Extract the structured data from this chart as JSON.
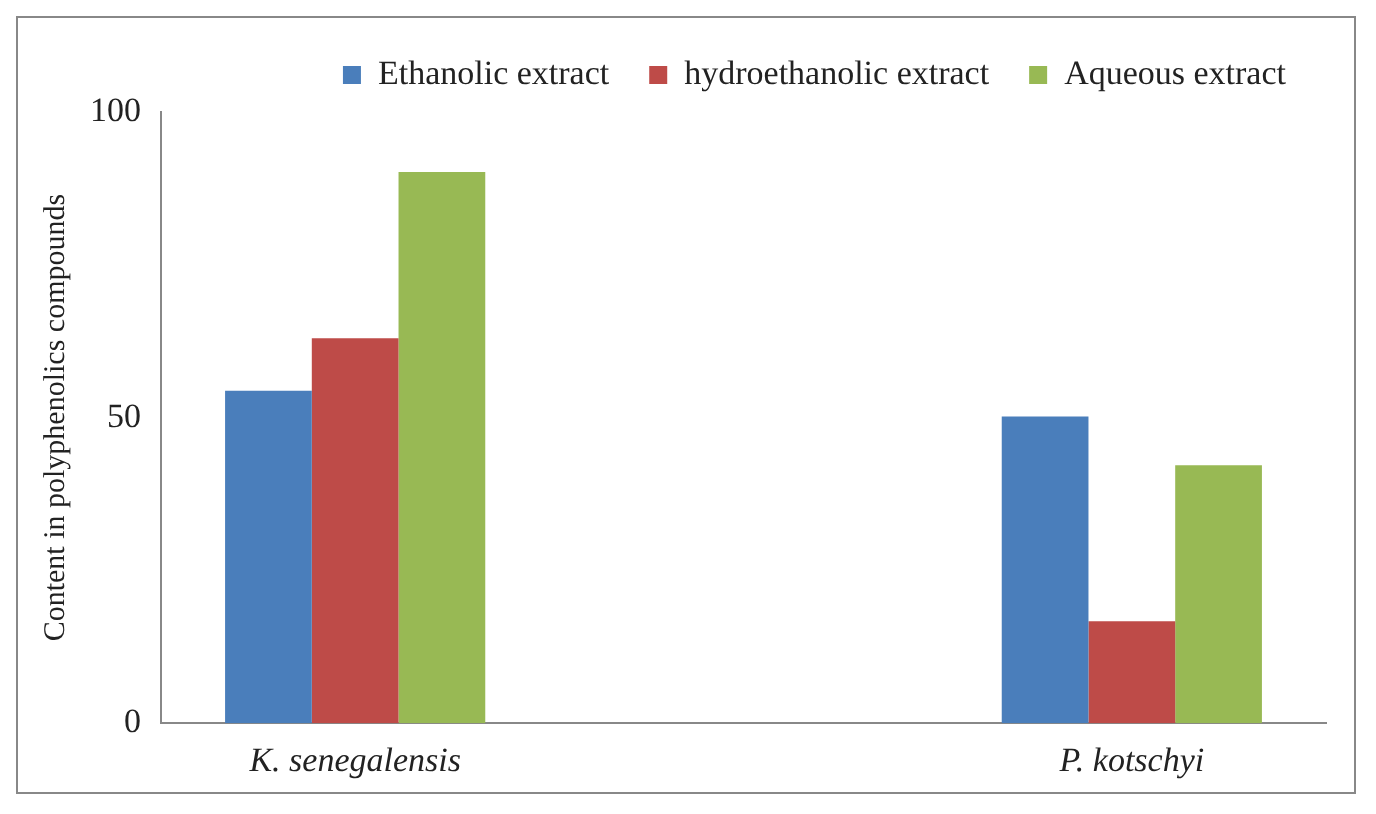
{
  "chart_data": {
    "type": "bar",
    "ylabel": "Content in polyphenolics compounds",
    "categories": [
      "K. senegalensis",
      null,
      "P. kotschyi"
    ],
    "series": [
      {
        "name": "Ethanolic extract",
        "color": "#4a7ebb",
        "values": [
          54.4,
          null,
          50.2
        ]
      },
      {
        "name": "hydroethanolic extract",
        "color": "#be4b48",
        "values": [
          63,
          null,
          16.7
        ]
      },
      {
        "name": "Aqueous extract",
        "color": "#98b954",
        "values": [
          90.2,
          null,
          42.2
        ]
      }
    ],
    "ylim": [
      0,
      100
    ],
    "yticks": [
      0,
      50,
      100
    ],
    "grid": false,
    "legend": "top"
  }
}
